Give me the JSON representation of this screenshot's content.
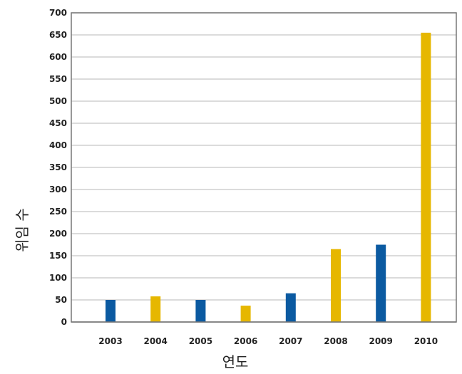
{
  "chart_data": {
    "type": "bar",
    "categories": [
      "2003",
      "2004",
      "2005",
      "2006",
      "2007",
      "2008",
      "2009",
      "2010"
    ],
    "values": [
      50,
      58,
      50,
      37,
      65,
      165,
      175,
      655
    ],
    "bar_colors": [
      "#0b5aa1",
      "#e6b700",
      "#0b5aa1",
      "#e6b700",
      "#0b5aa1",
      "#e6b700",
      "#0b5aa1",
      "#e6b700"
    ],
    "xlabel": "연도",
    "ylabel": "위임 수",
    "ylim": [
      0,
      700
    ],
    "yticks": [
      0,
      50,
      100,
      150,
      200,
      250,
      300,
      350,
      400,
      450,
      500,
      550,
      600,
      650,
      700
    ],
    "grid": true,
    "legend": "none"
  }
}
